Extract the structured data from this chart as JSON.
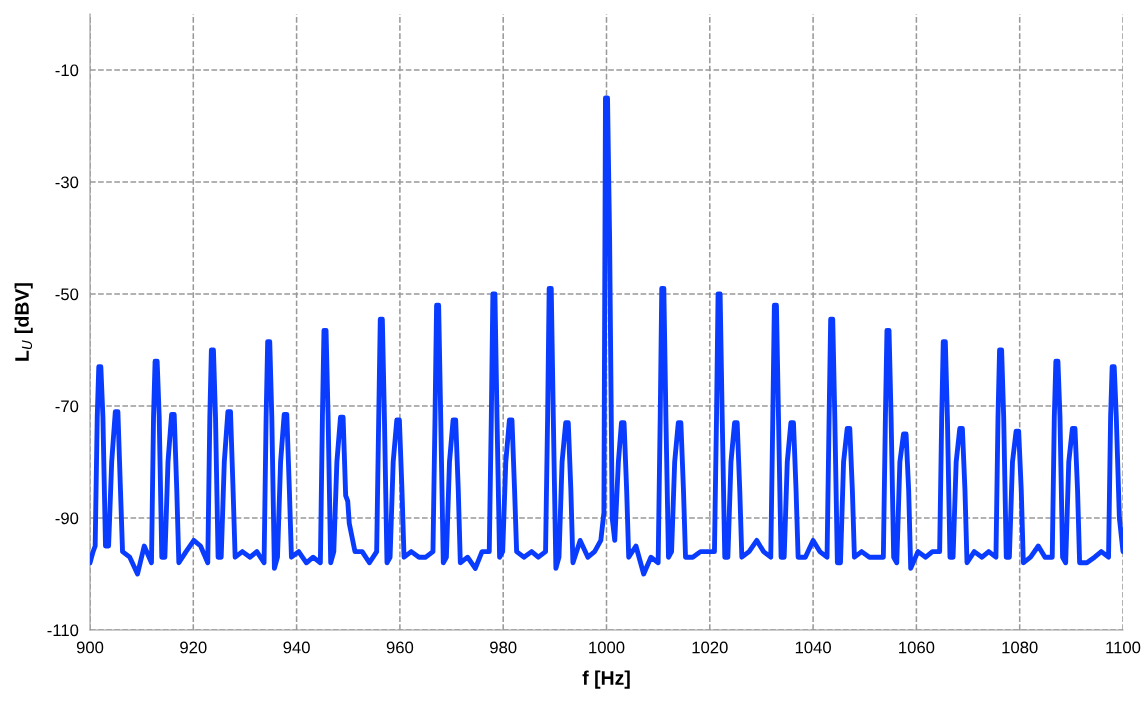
{
  "chart_data": {
    "type": "line",
    "xlabel": "f [Hz]",
    "ylabel": "L$_{U}$ [dBV]",
    "xlim": [
      900,
      1100
    ],
    "xticks": [
      900,
      920,
      940,
      960,
      980,
      1000,
      1020,
      1040,
      1060,
      1080,
      1100
    ],
    "ylim": [
      -110,
      0
    ],
    "yticks": [
      -110,
      -90,
      -70,
      -50,
      -30,
      -10
    ],
    "grid": true,
    "legend": false,
    "marker": "none",
    "line_style": "solid",
    "series": [
      {
        "color": "#0a3cff",
        "x": [
          900,
          900.6,
          901.0,
          901.4,
          901.7,
          902.1,
          902.5,
          903.0,
          903.6,
          904.2,
          904.9,
          905.4,
          905.9,
          906.3,
          907.7,
          909.2,
          910.5,
          911.9,
          912.3,
          912.6,
          913.0,
          913.4,
          913.9,
          914.5,
          915.1,
          915.8,
          916.3,
          916.8,
          917.2,
          918.6,
          920.1,
          921.4,
          922.8,
          923.2,
          923.5,
          923.9,
          924.3,
          924.8,
          925.4,
          926.0,
          926.7,
          927.2,
          927.7,
          928.1,
          929.5,
          931.0,
          932.3,
          933.7,
          934.1,
          934.4,
          934.8,
          935.2,
          935.7,
          936.3,
          936.9,
          937.6,
          938.1,
          938.6,
          939.0,
          940.4,
          941.9,
          943.2,
          944.6,
          945.0,
          945.3,
          945.7,
          946.1,
          946.6,
          947.2,
          947.8,
          948.5,
          949.0,
          949.5,
          949.9,
          950.2,
          951.3,
          952.7,
          954.1,
          955.5,
          955.9,
          956.2,
          956.6,
          957.0,
          957.5,
          958.1,
          958.7,
          959.4,
          959.9,
          960.4,
          960.8,
          962.2,
          963.7,
          965.0,
          966.4,
          966.8,
          967.1,
          967.5,
          967.9,
          968.4,
          969.0,
          969.6,
          970.3,
          970.8,
          971.3,
          971.7,
          973.1,
          974.6,
          975.9,
          977.3,
          977.7,
          978.0,
          978.4,
          978.8,
          979.3,
          979.9,
          980.5,
          981.2,
          981.7,
          982.2,
          982.6,
          984.0,
          985.5,
          986.8,
          988.2,
          988.6,
          988.9,
          989.3,
          989.7,
          990.2,
          990.8,
          991.4,
          992.1,
          992.6,
          993.1,
          993.5,
          994.9,
          996.4,
          997.7,
          998.9,
          999.5,
          999.8,
          1000.2,
          1000.6,
          1001.1,
          1001.6,
          1002.3,
          1002.9,
          1003.4,
          1003.9,
          1004.3,
          1005.7,
          1007.2,
          1008.6,
          1010.0,
          1010.4,
          1010.7,
          1011.1,
          1011.5,
          1012.0,
          1012.6,
          1013.2,
          1013.9,
          1014.4,
          1014.9,
          1015.3,
          1016.7,
          1018.2,
          1019.5,
          1020.9,
          1021.3,
          1021.6,
          1022.0,
          1022.4,
          1022.9,
          1023.5,
          1024.1,
          1024.8,
          1025.3,
          1025.8,
          1026.2,
          1027.6,
          1029.1,
          1030.4,
          1031.8,
          1032.2,
          1032.5,
          1032.9,
          1033.3,
          1033.8,
          1034.4,
          1035.0,
          1035.7,
          1036.2,
          1036.7,
          1037.1,
          1038.5,
          1040.0,
          1041.3,
          1042.7,
          1043.1,
          1043.4,
          1043.8,
          1044.2,
          1044.7,
          1045.3,
          1045.9,
          1046.6,
          1047.1,
          1047.6,
          1048.0,
          1049.4,
          1050.9,
          1052.2,
          1053.6,
          1054.0,
          1054.3,
          1054.7,
          1055.1,
          1055.6,
          1056.2,
          1056.8,
          1057.5,
          1058.0,
          1058.5,
          1058.9,
          1060.3,
          1061.8,
          1063.1,
          1064.5,
          1064.9,
          1065.2,
          1065.6,
          1066.0,
          1066.5,
          1067.1,
          1067.7,
          1068.4,
          1068.9,
          1069.4,
          1069.8,
          1071.2,
          1072.7,
          1074.0,
          1075.4,
          1075.8,
          1076.1,
          1076.5,
          1076.9,
          1077.4,
          1078.0,
          1078.6,
          1079.3,
          1079.8,
          1080.3,
          1080.7,
          1082.1,
          1083.6,
          1084.9,
          1086.3,
          1086.7,
          1087.0,
          1087.4,
          1087.8,
          1088.3,
          1088.9,
          1089.5,
          1090.2,
          1090.7,
          1091.2,
          1091.6,
          1093.0,
          1094.5,
          1095.8,
          1097.2,
          1097.6,
          1097.9,
          1098.3,
          1098.7,
          1099.3,
          1100.0
        ],
        "values": [
          -98,
          -96,
          -95,
          -72,
          -63,
          -63,
          -72,
          -95,
          -95,
          -80,
          -71,
          -71,
          -85,
          -96,
          -97,
          -100,
          -95,
          -98,
          -72,
          -62,
          -62,
          -72,
          -97,
          -97,
          -80,
          -71.5,
          -71.5,
          -85,
          -98,
          -96,
          -94,
          -95,
          -98,
          -72,
          -60,
          -60,
          -72,
          -97,
          -97,
          -80,
          -71,
          -71,
          -85,
          -97,
          -96,
          -97,
          -96,
          -98,
          -72,
          -58.5,
          -58.5,
          -72,
          -99,
          -97,
          -80,
          -71.5,
          -71.5,
          -85,
          -97,
          -96,
          -98,
          -97,
          -98,
          -72,
          -56.5,
          -56.5,
          -72,
          -98,
          -96,
          -80,
          -72,
          -72,
          -86,
          -87,
          -91,
          -96,
          -96,
          -98,
          -96,
          -72,
          -54.5,
          -54.5,
          -72,
          -98,
          -97,
          -80,
          -72.5,
          -72.5,
          -85,
          -97,
          -96,
          -97,
          -97,
          -96,
          -72,
          -52,
          -52,
          -72,
          -98,
          -97,
          -80,
          -72.5,
          -72.5,
          -85,
          -98,
          -97,
          -99,
          -96,
          -96,
          -72,
          -50,
          -50,
          -72,
          -97,
          -96,
          -80,
          -72.5,
          -72.5,
          -85,
          -96,
          -97,
          -96,
          -97,
          -96,
          -72,
          -49,
          -49,
          -72,
          -99,
          -97,
          -80,
          -73,
          -73,
          -85,
          -98,
          -94,
          -97,
          -96,
          -94,
          -89,
          -15,
          -15,
          -40,
          -90,
          -94,
          -80,
          -73,
          -73,
          -85,
          -97,
          -95,
          -100,
          -97,
          -98,
          -72,
          -49,
          -49,
          -72,
          -97,
          -96,
          -80,
          -73,
          -73,
          -85,
          -97,
          -97,
          -96,
          -96,
          -96,
          -72,
          -50,
          -50,
          -72,
          -97,
          -97,
          -80,
          -73,
          -73,
          -85,
          -97,
          -96,
          -94,
          -96,
          -97,
          -72,
          -52,
          -52,
          -72,
          -97,
          -97,
          -80,
          -73,
          -73,
          -85,
          -97,
          -97,
          -94,
          -96,
          -97,
          -72,
          -54.5,
          -54.5,
          -72,
          -98,
          -98,
          -80,
          -74,
          -74,
          -85,
          -97,
          -96,
          -97,
          -97,
          -97,
          -72,
          -56.5,
          -56.5,
          -72,
          -97,
          -98,
          -80,
          -75,
          -75,
          -85,
          -99,
          -96,
          -97,
          -96,
          -96,
          -72,
          -58.5,
          -58.5,
          -72,
          -97,
          -97,
          -80,
          -74,
          -74,
          -85,
          -98,
          -96,
          -97,
          -96,
          -97,
          -72,
          -60,
          -60,
          -72,
          -97,
          -97,
          -80,
          -74.5,
          -74.5,
          -85,
          -98,
          -97,
          -95,
          -97,
          -97,
          -72,
          -62,
          -62,
          -72,
          -97,
          -98,
          -80,
          -74,
          -74,
          -85,
          -98,
          -98,
          -97,
          -96,
          -97,
          -72,
          -63,
          -63,
          -72,
          -90,
          -96
        ]
      }
    ]
  }
}
